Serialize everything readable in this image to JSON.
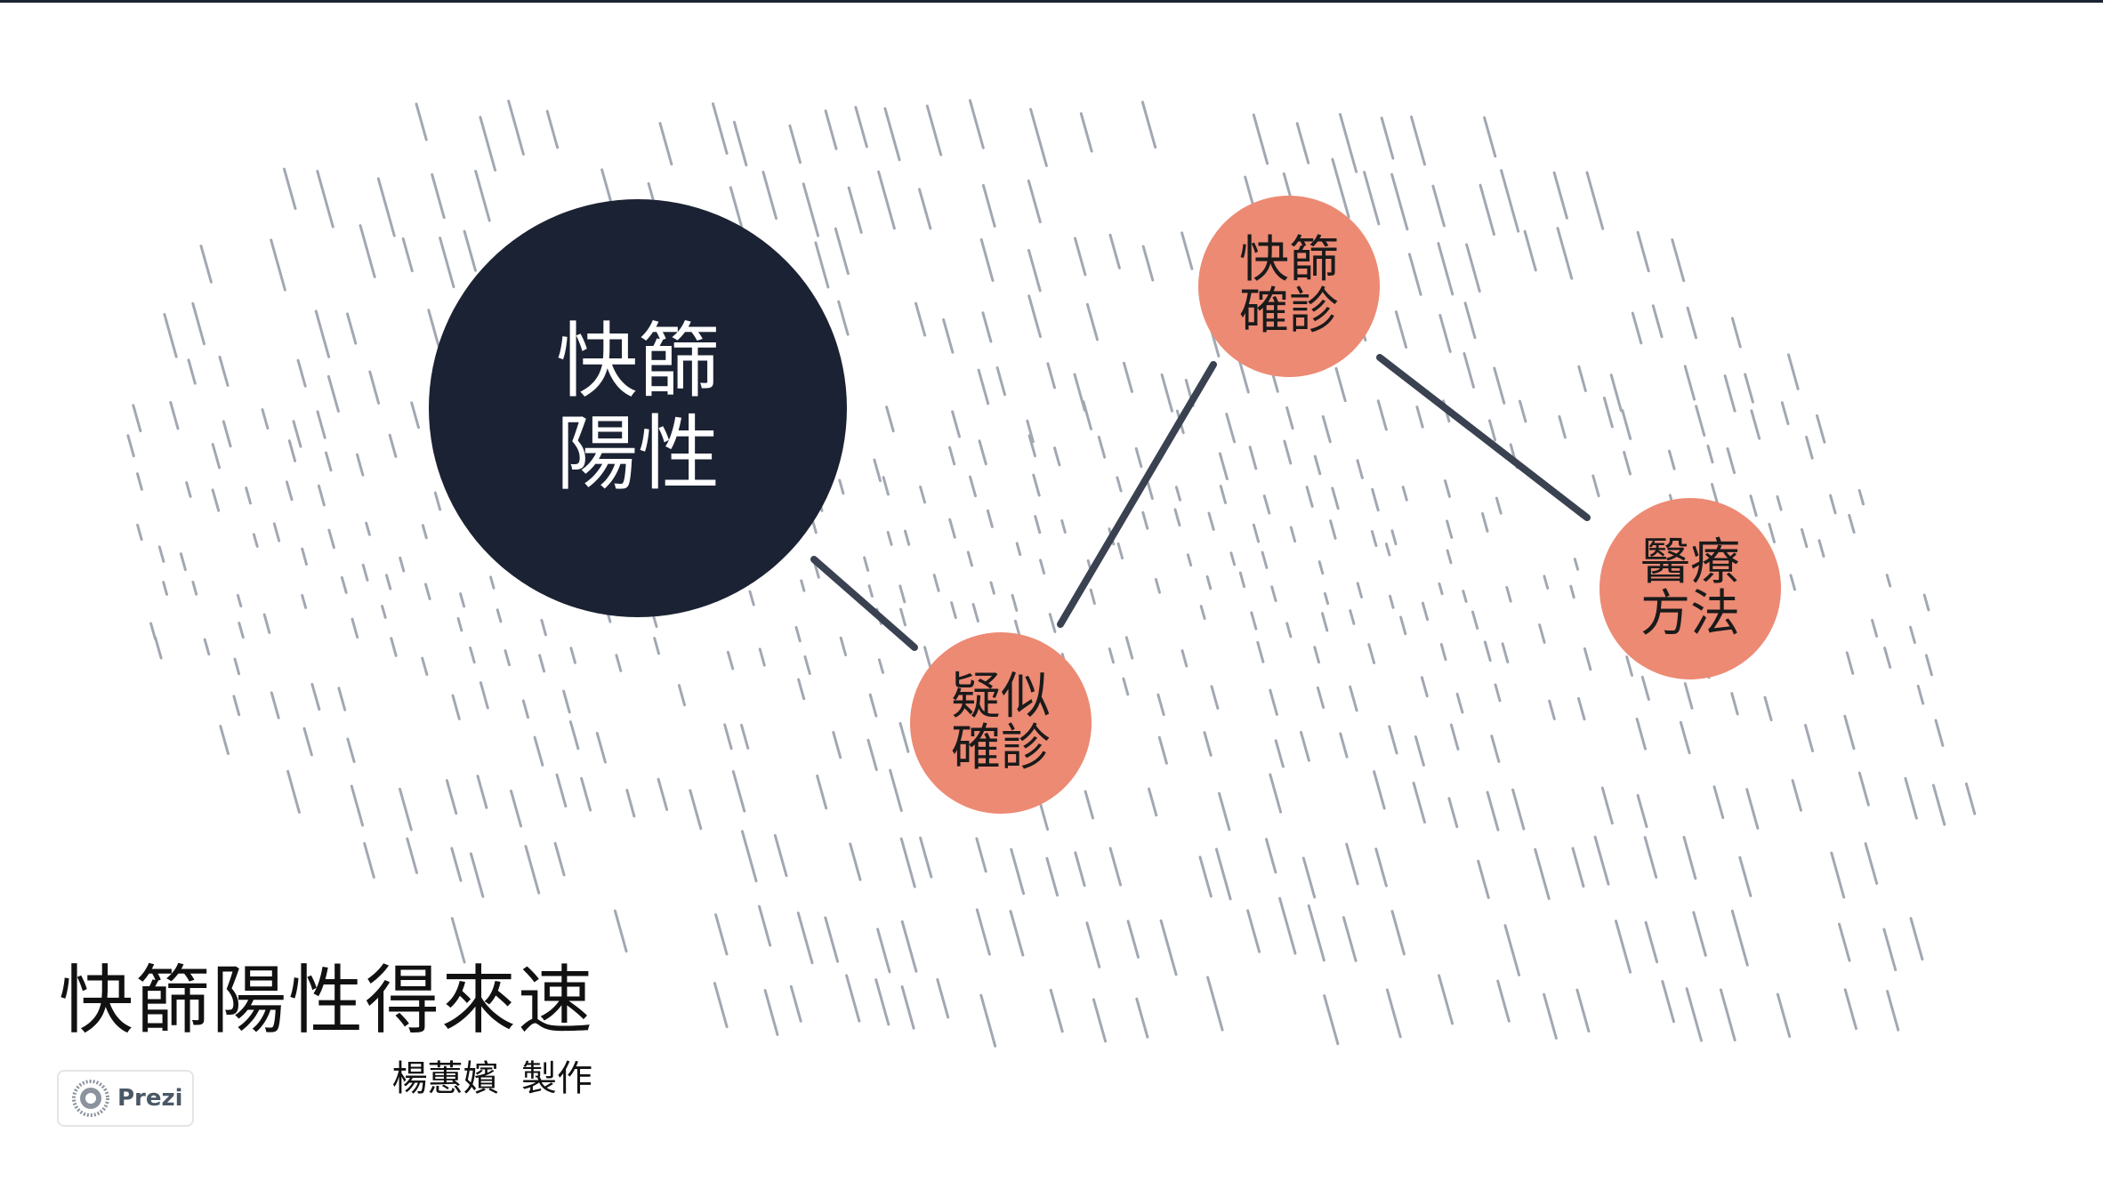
{
  "colors": {
    "dark_navy": "#1b2233",
    "coral": "#ec8a74",
    "connector": "#3a4150",
    "hatch": "#a2a8b2",
    "top_bar": "#1b2233"
  },
  "diagram": {
    "nodes": [
      {
        "id": "main",
        "label": "快篩\n陽性"
      },
      {
        "id": "suspected",
        "label": "疑似\n確診"
      },
      {
        "id": "confirm",
        "label": "快篩\n確診"
      },
      {
        "id": "treatment",
        "label": "醫療\n方法"
      }
    ],
    "edges": [
      {
        "from": "main",
        "to": "suspected"
      },
      {
        "from": "suspected",
        "to": "confirm"
      },
      {
        "from": "confirm",
        "to": "treatment"
      }
    ]
  },
  "title": "快篩陽性得來速",
  "subtitle": "楊蕙嬪  製作",
  "badge": {
    "label": "Prezi",
    "icon": "prezi-logo-icon"
  }
}
